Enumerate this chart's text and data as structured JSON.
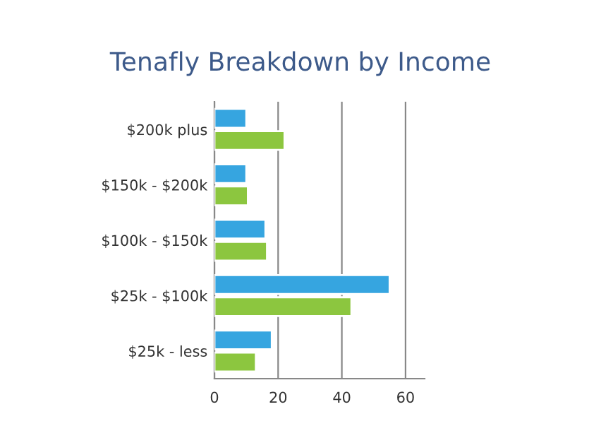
{
  "chart_data": {
    "type": "bar",
    "orientation": "horizontal",
    "title": "Tenafly Breakdown by Income",
    "categories": [
      "$200k plus",
      "$150k - $200k",
      "$100k - $150k",
      "$25k - $100k",
      "$25k - less"
    ],
    "series": [
      {
        "color": "#36a5e0",
        "values": [
          10,
          10,
          16,
          55,
          18
        ]
      },
      {
        "color": "#8cc63f",
        "values": [
          22,
          10.5,
          16.5,
          43,
          13
        ]
      }
    ],
    "xlim": [
      0,
      66
    ],
    "xticks": [
      0,
      20,
      40,
      60
    ],
    "grid": "x"
  }
}
